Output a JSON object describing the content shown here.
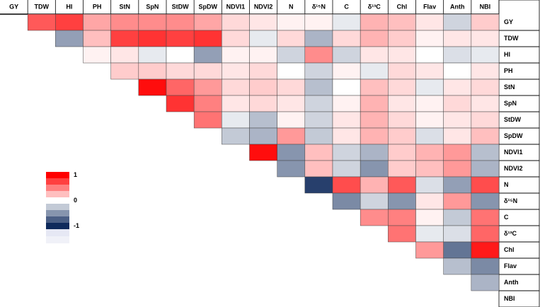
{
  "chart_data": {
    "type": "heatmap",
    "labels": [
      "GY",
      "TDW",
      "HI",
      "PH",
      "StN",
      "SpN",
      "StDW",
      "SpDW",
      "NDVI1",
      "NDVI2",
      "N",
      "δ¹⁵N",
      "C",
      "δ¹³C",
      "Chl",
      "Flav",
      "Anth",
      "NBI"
    ],
    "values": [
      [
        0.65,
        0.75,
        0.35,
        0.45,
        0.45,
        0.45,
        0.35,
        0.15,
        0.1,
        0.05,
        0.05,
        -0.1,
        0.3,
        0.25,
        0.1,
        -0.2,
        0.2
      ],
      [
        -0.45,
        0.25,
        0.75,
        0.8,
        0.75,
        0.8,
        0.15,
        -0.1,
        0.15,
        -0.35,
        0.15,
        0.3,
        0.2,
        0.05,
        0.1,
        0.1
      ],
      [
        0.05,
        0.1,
        -0.1,
        0,
        -0.45,
        0.05,
        0.05,
        -0.2,
        0.45,
        -0.2,
        0.1,
        0.1,
        0,
        -0.15,
        -0.1
      ],
      [
        0.2,
        0.2,
        0.15,
        0.15,
        0.1,
        0.15,
        0,
        -0.2,
        0.05,
        -0.1,
        0.15,
        0.1,
        0,
        0.1
      ],
      [
        0.95,
        0.6,
        0.4,
        0.15,
        0.2,
        0.15,
        -0.3,
        0,
        0.25,
        0.15,
        -0.1,
        0.1,
        0.15
      ],
      [
        0.8,
        0.5,
        0.1,
        0.15,
        0.1,
        -0.2,
        0.05,
        0.3,
        0.1,
        0.05,
        0.15,
        0.1
      ],
      [
        0.55,
        -0.1,
        -0.3,
        0.05,
        -0.2,
        0.1,
        0.3,
        0.15,
        0.05,
        0.1,
        0.15
      ],
      [
        -0.25,
        -0.35,
        0.4,
        -0.25,
        0.1,
        0.3,
        0.2,
        -0.15,
        0.1,
        0.25
      ],
      [
        0.95,
        -0.5,
        0.25,
        -0.2,
        -0.35,
        0.2,
        0.3,
        0.4,
        -0.3
      ],
      [
        -0.5,
        0.25,
        -0.2,
        -0.5,
        0.2,
        0.25,
        0.4,
        -0.35
      ],
      [
        -0.9,
        0.7,
        0.3,
        0.65,
        -0.15,
        -0.45,
        0.7
      ],
      [
        -0.55,
        -0.2,
        -0.5,
        0.1,
        0.4,
        -0.5
      ],
      [
        0.45,
        0.5,
        0.05,
        -0.25,
        0.55
      ],
      [
        0.55,
        -0.1,
        -0.15,
        0.6
      ],
      [
        0.4,
        -0.65,
        0.9
      ],
      [
        -0.3,
        -0.55
      ],
      [
        -0.35
      ],
      []
    ],
    "colors": {
      "min": "#0f2a5c",
      "mid": "#ffffff",
      "max": "#ff0000"
    },
    "legend_ticks": [
      1,
      0,
      -1
    ],
    "legend_steps": [
      1,
      0.75,
      0.5,
      0.25,
      0,
      -0.25,
      -0.5,
      -0.75,
      -1
    ]
  }
}
